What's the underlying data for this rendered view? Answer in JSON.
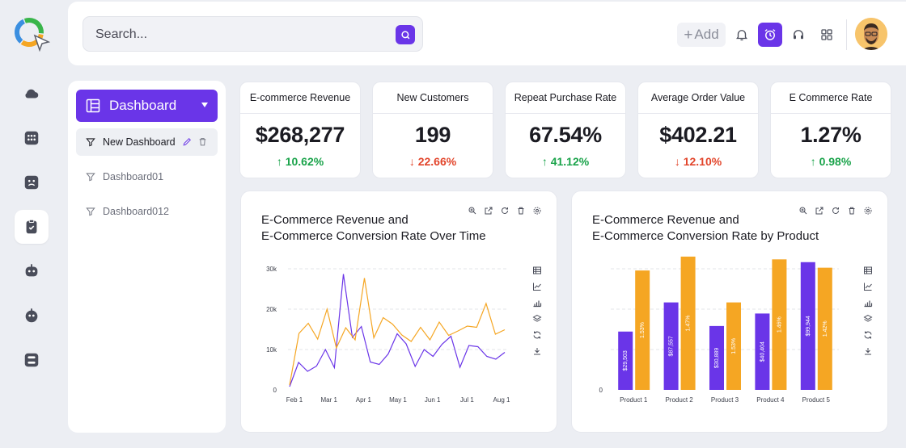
{
  "topbar": {
    "search_placeholder": "Search...",
    "add_label": "Add"
  },
  "sidebar": {
    "items": [
      {
        "icon": "cloud-icon"
      },
      {
        "icon": "grid-dots-icon"
      },
      {
        "icon": "face-icon"
      },
      {
        "icon": "clipboard-check-icon",
        "active": true
      },
      {
        "icon": "robot-icon"
      },
      {
        "icon": "bot-face-icon"
      },
      {
        "icon": "flow-icon"
      }
    ]
  },
  "dashboards": {
    "header_label": "Dashboard",
    "items": [
      {
        "label": "New Dashboard",
        "selected": true
      },
      {
        "label": "Dashboard01"
      },
      {
        "label": "Dashboard012"
      }
    ]
  },
  "kpis": [
    {
      "title": "E-commerce Revenue",
      "value": "$268,277",
      "delta": "10.62%",
      "direction": "up"
    },
    {
      "title": "New Customers",
      "value": "199",
      "delta": "22.66%",
      "direction": "down"
    },
    {
      "title": "Repeat Purchase Rate",
      "value": "67.54%",
      "delta": "41.12%",
      "direction": "up"
    },
    {
      "title": "Average Order Value",
      "value": "$402.21",
      "delta": "12.10%",
      "direction": "down"
    },
    {
      "title": "E Commerce Rate",
      "value": "1.27%",
      "delta": "0.98%",
      "direction": "up"
    }
  ],
  "colors": {
    "accent": "#6a35e8",
    "series_purple": "#6a35e8",
    "series_orange": "#f5a623",
    "up": "#1aa34a",
    "down": "#e2452b"
  },
  "chart_data": [
    {
      "type": "line",
      "title_line1": "E-Commerce Revenue and",
      "title_line2": "E-Commerce Conversion Rate Over Time",
      "ylim": [
        0,
        30000
      ],
      "yticks": [
        "0",
        "10k",
        "20k",
        "30k"
      ],
      "xticks": [
        "Feb 1",
        "Mar 1",
        "Apr 1",
        "May 1",
        "Jun 1",
        "Jul 1",
        "Aug 1"
      ],
      "grid": true,
      "series": [
        {
          "color": "#6a35e8",
          "values": [
            800,
            6800,
            4600,
            5900,
            10000,
            5500,
            28700,
            13000,
            15700,
            6900,
            6300,
            8900,
            13900,
            11400,
            5800,
            10000,
            8300,
            11300,
            13300,
            5600,
            11000,
            10700,
            8300,
            7600,
            9300
          ]
        },
        {
          "color": "#f5a623",
          "values": [
            1200,
            14000,
            16500,
            12600,
            20000,
            10400,
            15400,
            12400,
            27700,
            12900,
            17900,
            16300,
            13600,
            12000,
            15500,
            12400,
            16800,
            13500,
            14600,
            15800,
            15500,
            21400,
            13800,
            14900
          ]
        }
      ]
    },
    {
      "type": "bar",
      "title_line1": "E-Commerce Revenue and",
      "title_line2": "E-Commerce Conversion Rate by Product",
      "categories": [
        "Product 1",
        "Product 2",
        "Product 3",
        "Product 4",
        "Product 5"
      ],
      "yticks": [
        "0"
      ],
      "grid": true,
      "series": [
        {
          "color": "#6a35e8",
          "values": [
            29503,
            87557,
            30889,
            40404,
            99944
          ],
          "labels": [
            "$29,503",
            "$87,557",
            "$30,889",
            "$40,404",
            "$99,944"
          ],
          "heights": [
            0.42,
            0.63,
            0.46,
            0.55,
            0.92
          ]
        },
        {
          "color": "#f5a623",
          "values": [
            1.53,
            1.47,
            1.53,
            1.46,
            1.42
          ],
          "labels": [
            "1.53%",
            "1.47%",
            "1.53%",
            "1.46%",
            "1.42%"
          ],
          "heights": [
            0.86,
            0.96,
            0.63,
            0.94,
            0.88
          ]
        }
      ]
    }
  ]
}
